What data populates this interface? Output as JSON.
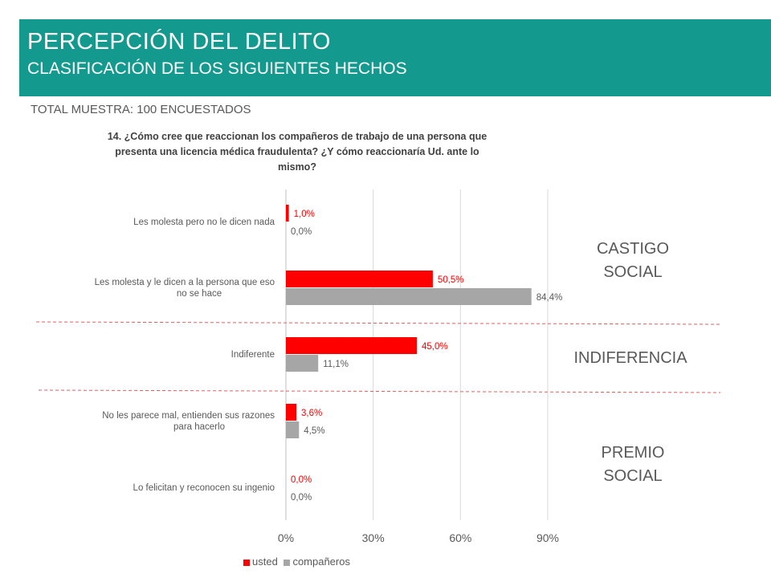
{
  "header": {
    "title": "PERCEPCIÓN DEL DELITO",
    "subtitle": "CLASIFICACIÓN DE LOS SIGUIENTES HECHOS"
  },
  "sample_label": "TOTAL MUESTRA: 100 ENCUESTADOS",
  "question": "14. ¿Cómo cree que  reaccionan los compañeros de trabajo de una persona que presenta una licencia médica fraudulenta? ¿Y cómo reaccionaría Ud. ante lo mismo?",
  "zones": {
    "castigo": "CASTIGO SOCIAL",
    "indiferencia": "INDIFERENCIA",
    "premio": "PREMIO SOCIAL"
  },
  "chart_data": {
    "type": "bar",
    "orientation": "horizontal",
    "categories": [
      "Les molesta pero no le dicen nada",
      "Les molesta y le dicen a la persona que eso no se hace",
      "Indiferente",
      "No les parece mal, entienden sus razones para hacerlo",
      "Lo felicitan y reconocen su ingenio"
    ],
    "series": [
      {
        "name": "usted",
        "color": "#ff0000",
        "values": [
          1.0,
          50.5,
          45.0,
          3.6,
          0.0
        ],
        "labels": [
          "1,0%",
          "50,5%",
          "45,0%",
          "3,6%",
          "0,0%"
        ]
      },
      {
        "name": "compañeros",
        "color": "#a6a6a6",
        "values": [
          0.0,
          84.4,
          11.1,
          4.5,
          0.0
        ],
        "labels": [
          "0,0%",
          "84,4%",
          "11,1%",
          "4,5%",
          "0,0%"
        ]
      }
    ],
    "xlim": [
      0,
      90
    ],
    "xticks": [
      "0%",
      "30%",
      "60%",
      "90%"
    ],
    "grid": true,
    "legend": "bottom"
  }
}
